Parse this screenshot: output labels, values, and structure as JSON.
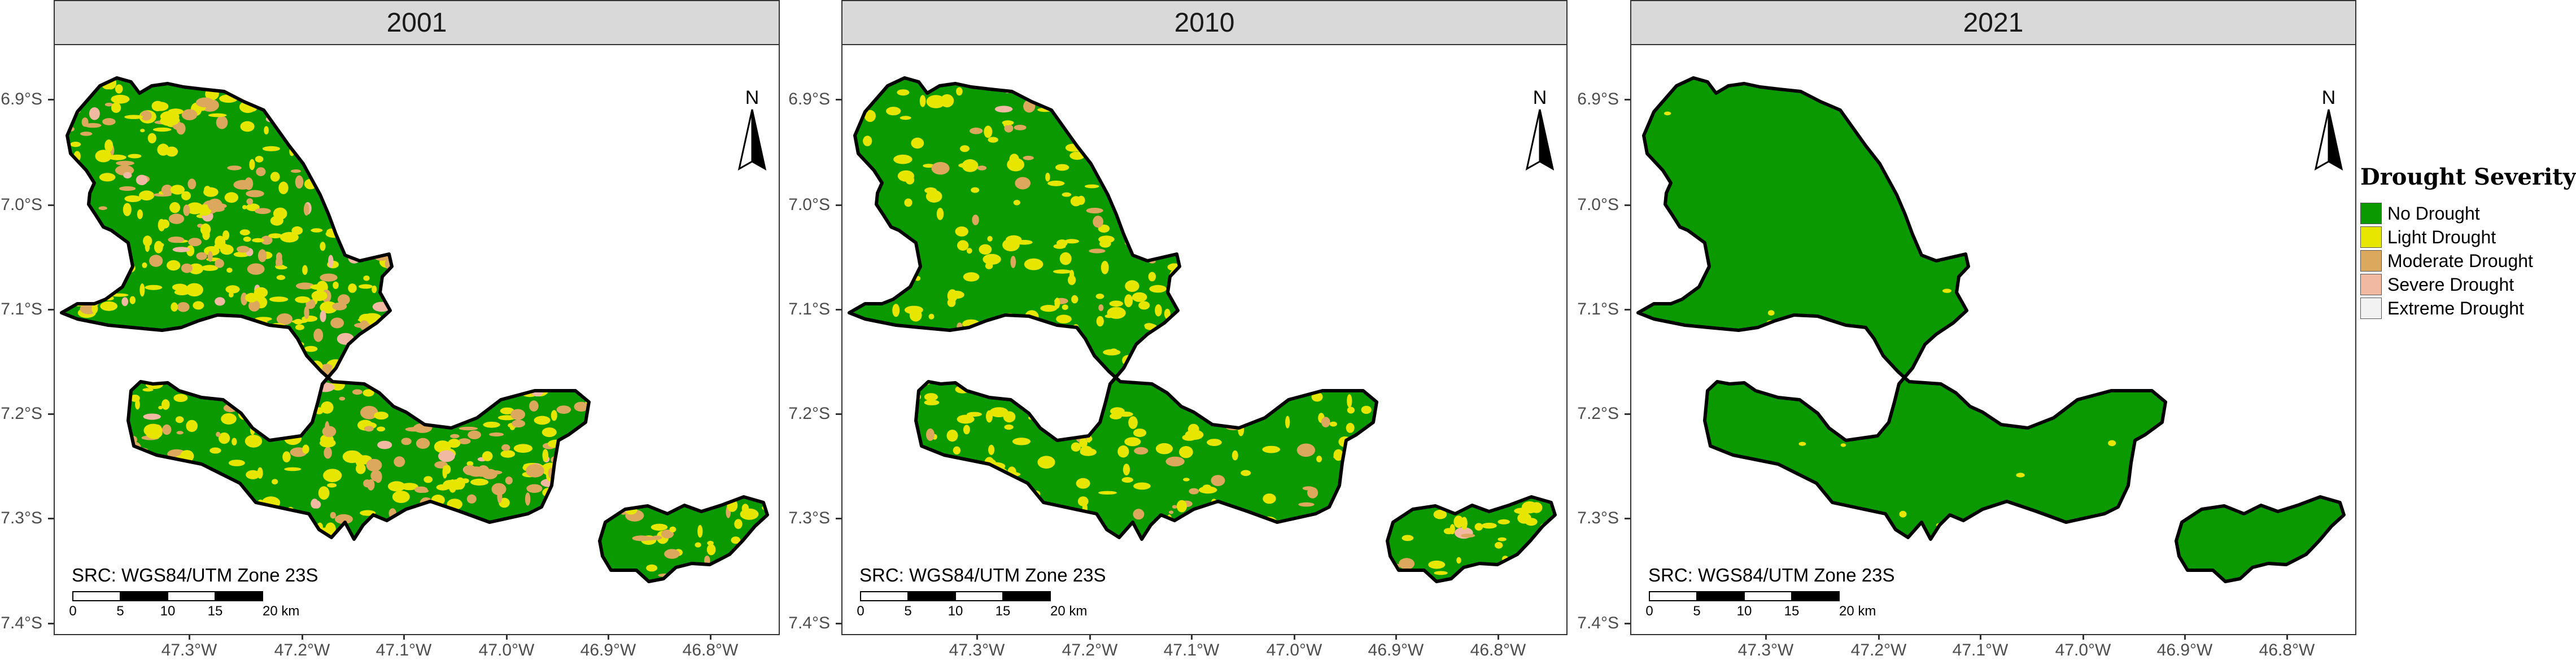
{
  "panels": [
    {
      "year": "2001",
      "drought_level": "high"
    },
    {
      "year": "2010",
      "drought_level": "medium"
    },
    {
      "year": "2021",
      "drought_level": "none"
    }
  ],
  "axes": {
    "y_ticks": [
      "6.9°S",
      "7.0°S",
      "7.1°S",
      "7.2°S",
      "7.3°S",
      "7.4°S"
    ],
    "x_ticks": [
      "47.3°W",
      "47.2°W",
      "47.1°W",
      "47.0°W",
      "46.9°W",
      "46.8°W"
    ]
  },
  "crs_label": "SRC: WGS84/UTM Zone 23S",
  "scale_bar": {
    "labels": [
      "0",
      "5",
      "10",
      "15",
      "20 km"
    ]
  },
  "north_label": "N",
  "legend": {
    "title": "Drought Severity",
    "items": [
      {
        "label": "No Drought",
        "color": "#0a9a00"
      },
      {
        "label": "Light Drought",
        "color": "#e6e600"
      },
      {
        "label": "Moderate Drought",
        "color": "#dca85e"
      },
      {
        "label": "Severe Drought",
        "color": "#f2b9a2"
      },
      {
        "label": "Extreme Drought",
        "color": "#f2f2f2"
      }
    ]
  }
}
